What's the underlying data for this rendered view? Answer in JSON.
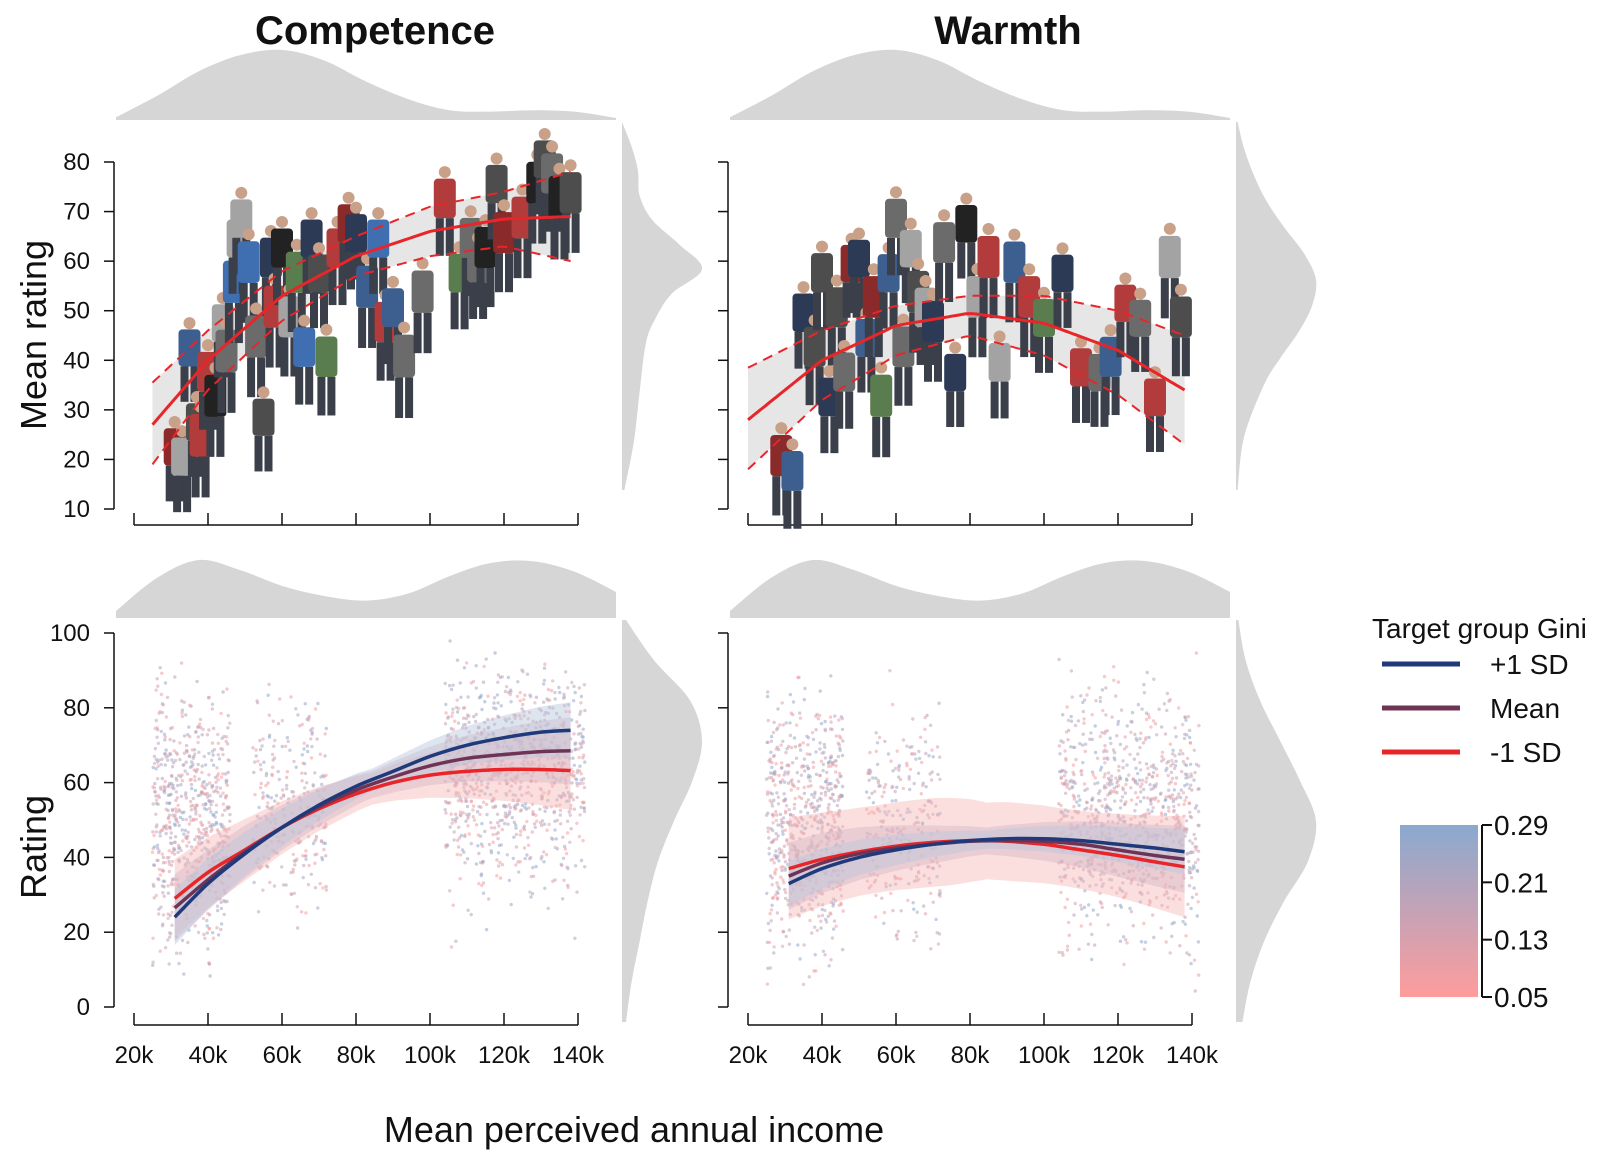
{
  "figure": {
    "x_axis_label": "Mean perceived annual income",
    "colors": {
      "plus_sd": "#1f3a7a",
      "mean": "#6e3456",
      "minus_sd": "#e8262a",
      "fit_top": "#e8262a",
      "density": "#d6d6d6",
      "gini_high": "#8aa9cf",
      "gini_low": "#ff9c9c"
    }
  },
  "legend": {
    "title": "Target group Gini",
    "items": [
      {
        "label": "+1 SD",
        "color": "#1f3a7a"
      },
      {
        "label": "Mean",
        "color": "#6e3456"
      },
      {
        "label": "-1 SD",
        "color": "#e8262a"
      }
    ],
    "colorbar": {
      "ticks": [
        "0.29",
        "0.21",
        "0.13",
        "0.05"
      ],
      "values": [
        0.29,
        0.21,
        0.13,
        0.05
      ],
      "top_color": "#8aa9cf",
      "bottom_color": "#ff9c9c"
    }
  },
  "chart_data": [
    {
      "id": "competence_mean",
      "type": "scatter",
      "title": "Competence",
      "xlabel": "",
      "ylabel": "Mean rating",
      "xlim": [
        20000,
        140000
      ],
      "ylim": [
        10,
        80
      ],
      "x_ticks": [
        20000,
        40000,
        60000,
        80000,
        100000,
        120000,
        140000
      ],
      "y_ticks": [
        10,
        20,
        30,
        40,
        50,
        60,
        70,
        80
      ],
      "y_tick_labels": [
        "10",
        "20",
        "30",
        "40",
        "50",
        "60",
        "70",
        "80"
      ],
      "fit": {
        "x": [
          25000,
          40000,
          60000,
          80000,
          100000,
          120000,
          138000
        ],
        "y": [
          27,
          40,
          53,
          61,
          66,
          68.5,
          69
        ],
        "ci_lower": [
          19,
          34,
          48,
          57,
          61,
          63,
          60
        ],
        "ci_upper": [
          35.5,
          46,
          58,
          65,
          71,
          74,
          78
        ]
      },
      "targets": {
        "x": [
          31000,
          33000,
          35000,
          37000,
          38000,
          40000,
          42000,
          44000,
          45000,
          47000,
          48000,
          49000,
          51000,
          53000,
          55000,
          57000,
          58000,
          60000,
          62000,
          64000,
          66000,
          68000,
          70000,
          72000,
          75000,
          78000,
          80000,
          83000,
          86000,
          88000,
          90000,
          93000,
          98000,
          104000,
          108000,
          111000,
          113000,
          115000,
          118000,
          120000,
          125000,
          129000,
          131000,
          133000,
          135000,
          138000
        ],
        "y": [
          20,
          18,
          40,
          25,
          22,
          35,
          30,
          45,
          39,
          53,
          62,
          66,
          57,
          42,
          26,
          58,
          48,
          60,
          46,
          55,
          40,
          62,
          55,
          38,
          60,
          65,
          63,
          52,
          62,
          45,
          48,
          38,
          51,
          70,
          55,
          62,
          57,
          60,
          73,
          63,
          66,
          73,
          78,
          75,
          70,
          71
        ]
      },
      "marginal_x_density": {
        "x": [
          20000,
          30000,
          40000,
          50000,
          60000,
          70000,
          80000,
          90000,
          100000,
          110000,
          120000,
          130000,
          140000
        ],
        "d": [
          0.04,
          0.35,
          0.7,
          0.93,
          1.0,
          0.85,
          0.55,
          0.3,
          0.14,
          0.12,
          0.14,
          0.12,
          0.03
        ]
      },
      "marginal_y_density": {
        "y": [
          10,
          20,
          30,
          40,
          45,
          50,
          55,
          60,
          65,
          70,
          75,
          80,
          85
        ],
        "d": [
          0.03,
          0.15,
          0.22,
          0.3,
          0.42,
          0.62,
          1.0,
          0.72,
          0.38,
          0.22,
          0.2,
          0.12,
          0.0
        ]
      }
    },
    {
      "id": "warmth_mean",
      "type": "scatter",
      "title": "Warmth",
      "xlabel": "",
      "ylabel": "",
      "xlim": [
        20000,
        140000
      ],
      "ylim": [
        10,
        80
      ],
      "x_ticks": [
        20000,
        40000,
        60000,
        80000,
        100000,
        120000,
        140000
      ],
      "y_ticks": [
        10,
        20,
        30,
        40,
        50,
        60,
        70,
        80
      ],
      "fit": {
        "x": [
          20000,
          40000,
          60000,
          80000,
          100000,
          120000,
          138000
        ],
        "y": [
          28,
          40,
          47,
          49.5,
          47.5,
          42,
          34
        ],
        "ci_lower": [
          18,
          32,
          41,
          45,
          41,
          33,
          23
        ],
        "ci_upper": [
          38.5,
          46,
          51,
          53,
          53,
          50,
          45
        ]
      },
      "targets": {
        "x": [
          29000,
          32000,
          35000,
          38000,
          40000,
          42000,
          44000,
          46000,
          48000,
          50000,
          52000,
          54000,
          56000,
          58000,
          60000,
          62000,
          64000,
          66000,
          68000,
          70000,
          73000,
          76000,
          79000,
          82000,
          85000,
          88000,
          92000,
          96000,
          100000,
          105000,
          110000,
          115000,
          118000,
          122000,
          126000,
          130000,
          134000,
          137000
        ],
        "y": [
          18,
          15,
          47,
          40,
          55,
          30,
          48,
          35,
          57,
          58,
          42,
          50,
          30,
          55,
          66,
          40,
          60,
          51,
          48,
          45,
          61,
          35,
          65,
          50,
          58,
          37,
          57,
          50,
          46,
          55,
          36,
          35,
          38,
          49,
          46,
          30,
          58,
          46
        ]
      },
      "marginal_x_density": {
        "x": [
          20000,
          30000,
          40000,
          50000,
          60000,
          70000,
          80000,
          90000,
          100000,
          110000,
          120000,
          130000,
          140000
        ],
        "d": [
          0.04,
          0.35,
          0.7,
          0.93,
          1.0,
          0.85,
          0.55,
          0.3,
          0.14,
          0.12,
          0.14,
          0.12,
          0.03
        ]
      },
      "marginal_y_density": {
        "y": [
          10,
          20,
          30,
          35,
          40,
          45,
          50,
          55,
          60,
          65,
          70,
          75,
          80
        ],
        "d": [
          0.02,
          0.1,
          0.35,
          0.55,
          0.78,
          0.95,
          1.0,
          0.85,
          0.6,
          0.38,
          0.22,
          0.1,
          0.02
        ]
      }
    },
    {
      "id": "competence_rating",
      "type": "scatter",
      "title": "",
      "xlabel": "Mean perceived annual income",
      "ylabel": "Rating",
      "xlim": [
        20000,
        140000
      ],
      "ylim": [
        0,
        100
      ],
      "x_ticks": [
        20000,
        40000,
        60000,
        80000,
        100000,
        120000,
        140000
      ],
      "x_tick_labels": [
        "20k",
        "40k",
        "60k",
        "80k",
        "100k",
        "120k",
        "140k"
      ],
      "y_ticks": [
        0,
        20,
        40,
        60,
        80,
        100
      ],
      "y_tick_labels": [
        "0",
        "20",
        "40",
        "60",
        "80",
        "100"
      ],
      "series": [
        {
          "name": "+1 SD",
          "x": [
            31000,
            40000,
            50000,
            60000,
            70000,
            80000,
            90000,
            100000,
            110000,
            120000,
            130000,
            138000
          ],
          "y": [
            24,
            33,
            41,
            48,
            54,
            59,
            63,
            67,
            70,
            72,
            73.5,
            74
          ],
          "ci": 5
        },
        {
          "name": "Mean",
          "x": [
            31000,
            40000,
            50000,
            60000,
            70000,
            80000,
            90000,
            100000,
            110000,
            120000,
            130000,
            138000
          ],
          "y": [
            26.5,
            34,
            41.5,
            48,
            53.5,
            58,
            61.5,
            64.5,
            66.5,
            67.5,
            68.3,
            68.5
          ],
          "ci": 6
        },
        {
          "name": "-1 SD",
          "x": [
            31000,
            40000,
            50000,
            60000,
            70000,
            80000,
            90000,
            100000,
            110000,
            120000,
            130000,
            138000
          ],
          "y": [
            29,
            36,
            42,
            48,
            53,
            57,
            60,
            62,
            63,
            63.5,
            63.5,
            63.2
          ],
          "ci": 7
        }
      ],
      "raw_point_clusters": [
        {
          "x_range": [
            25000,
            46000
          ],
          "y_range": [
            0,
            100
          ],
          "count": 650
        },
        {
          "x_range": [
            52000,
            72000
          ],
          "y_range": [
            15,
            95
          ],
          "count": 260
        },
        {
          "x_range": [
            104000,
            142000
          ],
          "y_range": [
            5,
            100
          ],
          "count": 900
        }
      ],
      "marginal_x_density": {
        "x": [
          20000,
          30000,
          40000,
          50000,
          60000,
          70000,
          80000,
          90000,
          100000,
          110000,
          120000,
          130000,
          140000
        ],
        "d": [
          0.12,
          0.7,
          1.0,
          0.82,
          0.55,
          0.38,
          0.3,
          0.42,
          0.72,
          0.95,
          0.98,
          0.8,
          0.45
        ]
      },
      "marginal_y_density": {
        "y": [
          0,
          10,
          20,
          30,
          40,
          50,
          60,
          70,
          80,
          90,
          100
        ],
        "d": [
          0.05,
          0.12,
          0.22,
          0.32,
          0.45,
          0.65,
          0.88,
          1.0,
          0.85,
          0.4,
          0.05
        ]
      }
    },
    {
      "id": "warmth_rating",
      "type": "scatter",
      "title": "",
      "xlabel": "",
      "ylabel": "",
      "xlim": [
        20000,
        140000
      ],
      "ylim": [
        0,
        100
      ],
      "x_ticks": [
        20000,
        40000,
        60000,
        80000,
        100000,
        120000,
        140000
      ],
      "x_tick_labels": [
        "20k",
        "40k",
        "60k",
        "80k",
        "100k",
        "120k",
        "140k"
      ],
      "y_ticks": [
        0,
        20,
        40,
        60,
        80,
        100
      ],
      "series": [
        {
          "name": "+1 SD",
          "x": [
            31000,
            40000,
            50000,
            60000,
            70000,
            80000,
            90000,
            100000,
            110000,
            120000,
            130000,
            138000
          ],
          "y": [
            33,
            37,
            40,
            42,
            43.5,
            44.5,
            45,
            45,
            44.5,
            43.5,
            42.5,
            41.5
          ],
          "ci": 4
        },
        {
          "name": "Mean",
          "x": [
            31000,
            40000,
            50000,
            60000,
            70000,
            80000,
            90000,
            100000,
            110000,
            120000,
            130000,
            138000
          ],
          "y": [
            35,
            38.5,
            41,
            42.5,
            43.5,
            44.3,
            44.5,
            44.3,
            43.5,
            42,
            40.5,
            39.5
          ],
          "ci": 6
        },
        {
          "name": "-1 SD",
          "x": [
            31000,
            40000,
            50000,
            60000,
            70000,
            80000,
            90000,
            100000,
            110000,
            120000,
            130000,
            138000
          ],
          "y": [
            37,
            39.5,
            41.5,
            43,
            44,
            44.5,
            44.3,
            43.5,
            42,
            40.5,
            38.8,
            37.5
          ],
          "ci": 9
        }
      ],
      "raw_point_clusters": [
        {
          "x_range": [
            25000,
            46000
          ],
          "y_range": [
            0,
            100
          ],
          "count": 650
        },
        {
          "x_range": [
            52000,
            72000
          ],
          "y_range": [
            5,
            95
          ],
          "count": 260
        },
        {
          "x_range": [
            104000,
            142000
          ],
          "y_range": [
            0,
            100
          ],
          "count": 900
        }
      ],
      "marginal_x_density": {
        "x": [
          20000,
          30000,
          40000,
          50000,
          60000,
          70000,
          80000,
          90000,
          100000,
          110000,
          120000,
          130000,
          140000
        ],
        "d": [
          0.12,
          0.7,
          1.0,
          0.82,
          0.55,
          0.38,
          0.3,
          0.42,
          0.72,
          0.95,
          0.98,
          0.8,
          0.45
        ]
      },
      "marginal_y_density": {
        "y": [
          0,
          10,
          20,
          30,
          40,
          50,
          60,
          70,
          80,
          90,
          100
        ],
        "d": [
          0.08,
          0.18,
          0.35,
          0.6,
          0.9,
          1.0,
          0.8,
          0.55,
          0.3,
          0.12,
          0.03
        ]
      }
    }
  ]
}
